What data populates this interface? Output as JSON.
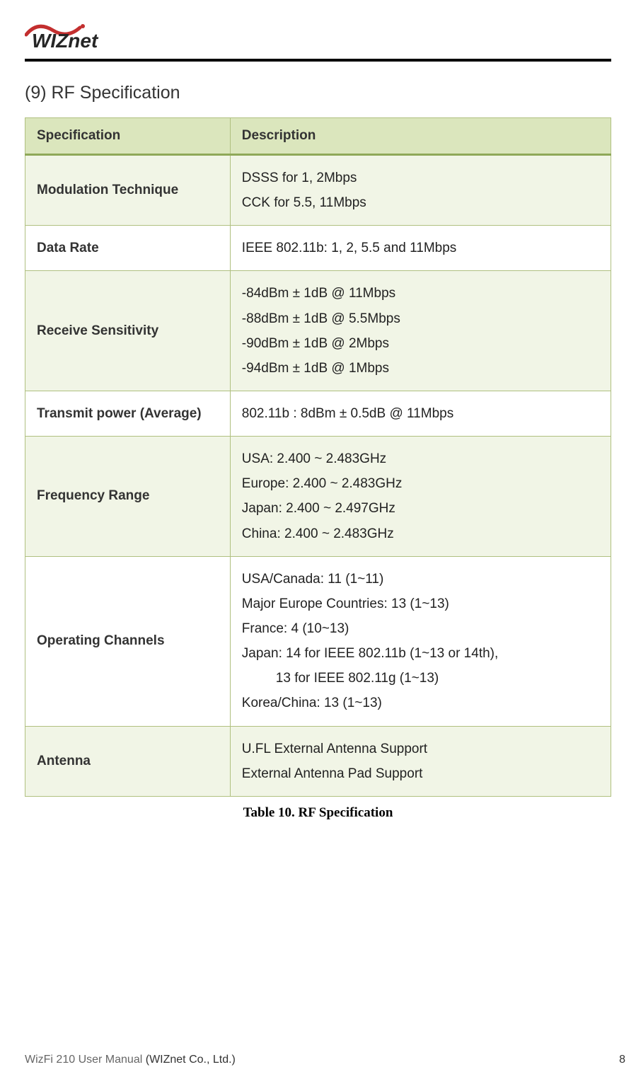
{
  "header": {
    "logo_text": "WIZnet",
    "logo_colors": {
      "accent": "#c32f2f",
      "text": "#262626"
    }
  },
  "section": {
    "number": "(9)",
    "title": "RF Specification",
    "full_title": "(9)   RF Specification"
  },
  "table": {
    "columns": [
      "Specification",
      "Description"
    ],
    "col_widths_pct": [
      35,
      65
    ],
    "header_bg": "#dbe6bd",
    "header_border_bottom": "#8fa858",
    "cell_border": "#b0c080",
    "tint_bg": "#f1f5e6",
    "plain_bg": "#ffffff",
    "font_size_pt": 14,
    "rows": [
      {
        "spec": "Modulation Technique",
        "lines": [
          "DSSS for 1, 2Mbps",
          "CCK for 5.5, 11Mbps"
        ],
        "tint": true
      },
      {
        "spec": "Data Rate",
        "lines": [
          "IEEE 802.11b: 1, 2, 5.5 and 11Mbps"
        ],
        "tint": false
      },
      {
        "spec": "Receive Sensitivity",
        "lines": [
          "-84dBm ± 1dB @ 11Mbps",
          "-88dBm ± 1dB @ 5.5Mbps",
          "-90dBm ± 1dB @ 2Mbps",
          "-94dBm ± 1dB @ 1Mbps"
        ],
        "tint": true
      },
      {
        "spec": "Transmit power (Average)",
        "lines": [
          "802.11b : 8dBm ± 0.5dB @ 11Mbps"
        ],
        "tint": false
      },
      {
        "spec": "Frequency Range",
        "lines": [
          "USA: 2.400 ~ 2.483GHz",
          "Europe: 2.400 ~ 2.483GHz",
          "Japan: 2.400 ~ 2.497GHz",
          "China: 2.400 ~ 2.483GHz"
        ],
        "tint": true
      },
      {
        "spec": "Operating Channels",
        "lines": [
          "USA/Canada: 11 (1~11)",
          "Major Europe Countries: 13 (1~13)",
          "France: 4 (10~13)",
          "Japan: 14 for IEEE 802.11b (1~13 or 14th),",
          "          13 for IEEE 802.11g (1~13)",
          "Korea/China: 13 (1~13)"
        ],
        "indented_lines": [
          4
        ],
        "tint": false
      },
      {
        "spec": "Antenna",
        "lines": [
          "U.FL External Antenna Support",
          "External Antenna Pad Support"
        ],
        "tint": true
      }
    ],
    "caption": "Table 10. RF Specification"
  },
  "footer": {
    "doc_title": "WizFi 210 User Manual",
    "company": "(WIZnet Co., Ltd.)",
    "page_number": "8"
  }
}
